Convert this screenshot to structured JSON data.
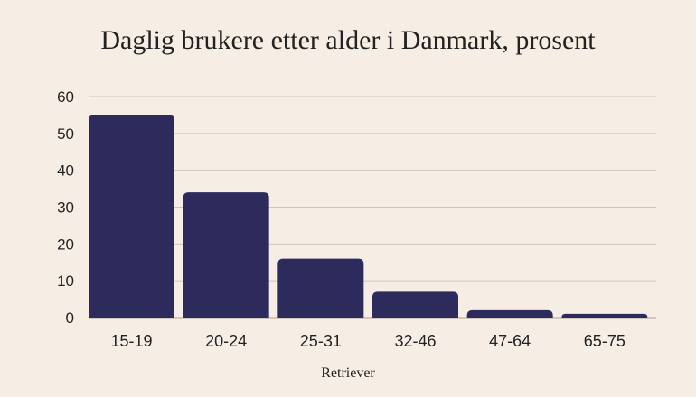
{
  "chart_data": {
    "type": "bar",
    "title": "Daglig brukere etter alder i Danmark, prosent",
    "categories": [
      "15-19",
      "20-24",
      "25-31",
      "32-46",
      "47-64",
      "65-75"
    ],
    "values": [
      55,
      34,
      16,
      7,
      2,
      1
    ],
    "xlabel": "",
    "ylabel": "",
    "ylim": [
      0,
      60
    ],
    "yticks": [
      0,
      10,
      20,
      30,
      40,
      50,
      60
    ],
    "grid": true,
    "bar_color": "#2d2a5c",
    "background": "#f6eee4"
  },
  "branding": {
    "logo": "Retriever"
  }
}
